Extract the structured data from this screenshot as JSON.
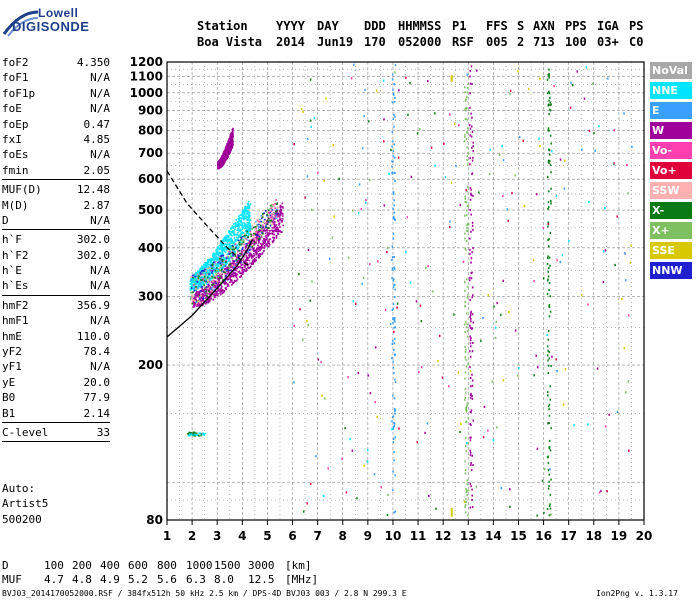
{
  "logo": {
    "top": "Lowell",
    "bottom": "DIGISONDE"
  },
  "header": {
    "labels": [
      "Station",
      "YYYY",
      "DAY",
      "DDD",
      "HHMMSS",
      "P1",
      "FFS",
      "S",
      "AXN",
      "PPS",
      "IGA",
      "PS"
    ],
    "values": [
      "Boa Vista",
      "2014",
      "Jun19",
      "170",
      "052000",
      "RSF",
      "005",
      "2",
      "713",
      "100",
      "03+",
      "C0"
    ]
  },
  "params_groups": [
    [
      [
        "foF2",
        "4.350"
      ],
      [
        "foF1",
        "N/A"
      ],
      [
        "foF1p",
        "N/A"
      ],
      [
        "foE",
        "N/A"
      ],
      [
        "foEp",
        "0.47"
      ],
      [
        "fxI",
        "4.85"
      ],
      [
        "foEs",
        "N/A"
      ],
      [
        "fmin",
        "2.05"
      ]
    ],
    [
      [
        "MUF(D)",
        "12.48"
      ],
      [
        "M(D)",
        "2.87"
      ],
      [
        "D",
        "N/A"
      ]
    ],
    [
      [
        "h`F",
        "302.0"
      ],
      [
        "h`F2",
        "302.0"
      ],
      [
        "h`E",
        "N/A"
      ],
      [
        "h`Es",
        "N/A"
      ]
    ],
    [
      [
        "hmF2",
        "356.9"
      ],
      [
        "hmF1",
        "N/A"
      ],
      [
        "hmE",
        "110.0"
      ],
      [
        "yF2",
        "78.4"
      ],
      [
        "yF1",
        "N/A"
      ],
      [
        "yE",
        "20.0"
      ],
      [
        "B0",
        "77.9"
      ],
      [
        "B1",
        "2.14"
      ]
    ],
    [
      [
        "C-level",
        "33"
      ]
    ]
  ],
  "auto": {
    "line1": "Auto:",
    "line2": "Artist5",
    "line3": "500200"
  },
  "legend": [
    {
      "label": "NoVal",
      "color": "#a8a8a8"
    },
    {
      "label": "NNE",
      "color": "#00e5ff"
    },
    {
      "label": "E",
      "color": "#3aa0ff"
    },
    {
      "label": "W",
      "color": "#a0009a"
    },
    {
      "label": "Vo-",
      "color": "#ff3fb0"
    },
    {
      "label": "Vo+",
      "color": "#e0003a"
    },
    {
      "label": "SSW",
      "color": "#ffb0b0"
    },
    {
      "label": "X-",
      "color": "#0a7a14"
    },
    {
      "label": "X+",
      "color": "#7ec060"
    },
    {
      "label": "SSE",
      "color": "#d8c800"
    },
    {
      "label": "NNW",
      "color": "#2020d0"
    }
  ],
  "footer": {
    "d_label": "D",
    "d_values": [
      "100",
      "200",
      "400",
      "600",
      "800",
      "1000",
      "1500",
      "3000"
    ],
    "d_unit": "[km]",
    "muf_label": "MUF",
    "muf_values": [
      "4.7",
      "4.8",
      "4.9",
      "5.2",
      "5.6",
      "6.3",
      "8.0",
      "12.5"
    ],
    "muf_unit": "[MHz]",
    "file_info": "BVJ03_2014170052000.RSF / 384fx512h 50 kHz 2.5 km / DPS-4D BVJ03 003 / 2.8 N 299.3 E",
    "version": "Ion2Png v. 1.3.17"
  },
  "chart_data": {
    "type": "scatter",
    "title": "",
    "xlabel": "",
    "ylabel": "",
    "xlim": [
      1,
      20
    ],
    "ylim": [
      80,
      1200
    ],
    "x_ticks": [
      1,
      2,
      3,
      4,
      5,
      6,
      7,
      8,
      9,
      10,
      11,
      12,
      13,
      14,
      15,
      16,
      17,
      18,
      19,
      20
    ],
    "y_ticks": [
      80,
      100,
      200,
      300,
      400,
      500,
      600,
      700,
      800,
      900,
      1000,
      1100,
      1200
    ],
    "y_labels": [
      80,
      200,
      300,
      400,
      500,
      600,
      700,
      800,
      900,
      1000,
      1100,
      1200
    ],
    "y_scale": "log",
    "grid": true,
    "clusters": [
      {
        "series": "W",
        "freq_range": [
          2.0,
          5.6
        ],
        "height_at_start": 290,
        "height_at_end": 470,
        "spread": 60
      },
      {
        "series": "NNE",
        "freq_range": [
          1.9,
          4.3
        ],
        "height_at_start": 320,
        "height_at_end": 470,
        "spread": 70
      },
      {
        "series": "W",
        "freq_range": [
          3.0,
          3.6
        ],
        "height_at_start": 650,
        "height_at_end": 760,
        "spread": 60
      }
    ],
    "vertical_traces": [
      {
        "freq": 12.9,
        "series": "X+"
      },
      {
        "freq": 13.1,
        "series": "W"
      },
      {
        "freq": 16.2,
        "series": "X-"
      },
      {
        "freq": 10.0,
        "series": "E"
      }
    ],
    "profile_curve_solid": [
      [
        1.0,
        236
      ],
      [
        2.0,
        268
      ],
      [
        3.0,
        315
      ],
      [
        3.8,
        360
      ],
      [
        4.2,
        395
      ],
      [
        4.4,
        420
      ]
    ],
    "profile_curve_dashed": [
      [
        1.0,
        630
      ],
      [
        1.8,
        520
      ],
      [
        2.6,
        455
      ],
      [
        3.4,
        400
      ],
      [
        4.1,
        365
      ],
      [
        4.35,
        357
      ]
    ]
  }
}
